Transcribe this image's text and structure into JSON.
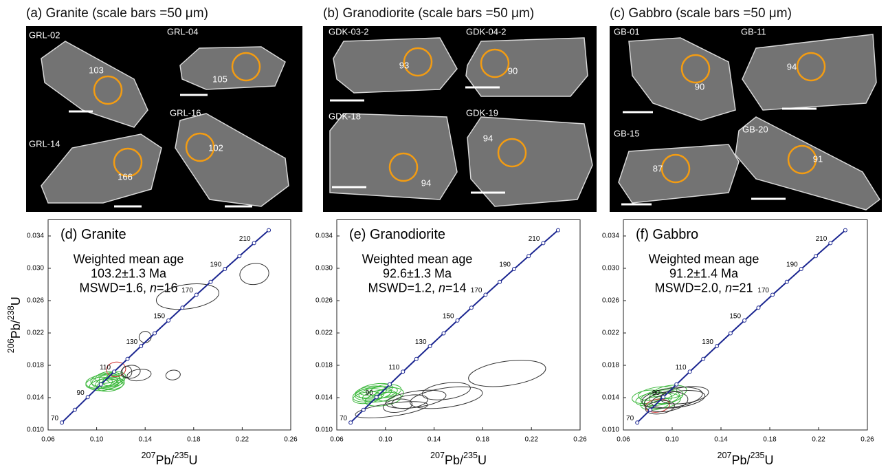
{
  "panels": [
    {
      "title": "(a) Granite (scale bars =50 μm)",
      "grains": [
        {
          "label": "GRL-02",
          "age": 103
        },
        {
          "label": "GRL-04",
          "age": 105
        },
        {
          "label": "GRL-14",
          "age": 166
        },
        {
          "label": "GRL-16",
          "age": 102
        }
      ]
    },
    {
      "title": "(b) Granodiorite (scale bars =50 μm)",
      "grains": [
        {
          "label": "GDK-03-2",
          "age": 93
        },
        {
          "label": "GDK-04-2",
          "age": 90
        },
        {
          "label": "GDK-18",
          "age": 94
        },
        {
          "label": "GDK-19",
          "age": 94
        }
      ]
    },
    {
      "title": "(c) Gabbro (scale bars =50 μm)",
      "grains": [
        {
          "label": "GB-01",
          "age": 90
        },
        {
          "label": "GB-11",
          "age": 94
        },
        {
          "label": "GB-15",
          "age": 87
        },
        {
          "label": "GB-20",
          "age": 91
        }
      ]
    }
  ],
  "chart_data": [
    {
      "type": "concordia",
      "title": "(d) Granite",
      "annotation": [
        "Weighted mean age",
        "103.2±1.3 Ma"
      ],
      "stats": [
        {
          "text": "MSWD=1.6, "
        },
        {
          "text": "n",
          "italic": true
        },
        {
          "text": "=16"
        }
      ],
      "y_label": [
        {
          "text": "206",
          "sup": true
        },
        {
          "text": "Pb/"
        },
        {
          "text": "238",
          "sup": true
        },
        {
          "text": "U"
        }
      ],
      "x_label": [
        {
          "text": "207",
          "sup": true
        },
        {
          "text": "Pb/"
        },
        {
          "text": "235",
          "sup": true
        },
        {
          "text": "U"
        }
      ],
      "xlim": [
        0.06,
        0.26
      ],
      "ylim": [
        0.01,
        0.036
      ],
      "xticks": [
        {
          "value": 0.06,
          "label": "0.06"
        },
        {
          "value": 0.1,
          "label": "0.10"
        },
        {
          "value": 0.14,
          "label": "0.14"
        },
        {
          "value": 0.18,
          "label": "0.18"
        },
        {
          "value": 0.22,
          "label": "0.22"
        },
        {
          "value": 0.26,
          "label": "0.26"
        }
      ],
      "yticks": [
        {
          "value": 0.01,
          "label": "0.010"
        },
        {
          "value": 0.014,
          "label": "0.014"
        },
        {
          "value": 0.018,
          "label": "0.018"
        },
        {
          "value": 0.022,
          "label": "0.022"
        },
        {
          "value": 0.026,
          "label": "0.026"
        },
        {
          "value": 0.03,
          "label": "0.030"
        },
        {
          "value": 0.034,
          "label": "0.034"
        }
      ],
      "concordia": {
        "color": "#1a2590",
        "x": [
          0.07137,
          0.08198,
          0.09268,
          0.1035,
          0.11442,
          0.12545,
          0.13659,
          0.14783,
          0.15919,
          0.17068,
          0.18226,
          0.19396,
          0.20577,
          0.21771,
          0.22974,
          0.24191
        ],
        "y": [
          0.010918,
          0.012487,
          0.014059,
          0.015634,
          0.01721,
          0.018789,
          0.020371,
          0.021955,
          0.023542,
          0.025131,
          0.026722,
          0.028316,
          0.029913,
          0.031511,
          0.033113,
          0.034717
        ],
        "age_labels": [
          70,
          null,
          90,
          null,
          110,
          null,
          130,
          null,
          150,
          null,
          170,
          null,
          190,
          null,
          210,
          null
        ]
      },
      "series": [
        {
          "color": "#3cb83c",
          "x": [
            0.108,
            0.11,
            0.112,
            0.106,
            0.114,
            0.104,
            0.109,
            0.111,
            0.107,
            0.113,
            0.102,
            0.116
          ],
          "y": [
            0.016,
            0.0158,
            0.0163,
            0.0156,
            0.0161,
            0.016,
            0.0165,
            0.0155,
            0.0162,
            0.0157,
            0.0158,
            0.0165
          ],
          "x_err": [
            0.012,
            0.011,
            0.01,
            0.012,
            0.009,
            0.013,
            0.01,
            0.011,
            0.012,
            0.01,
            0.011,
            0.008
          ],
          "y_err": [
            0.0008,
            0.0007,
            0.0008,
            0.0007,
            0.0007,
            0.0008,
            0.0007,
            0.0007,
            0.0008,
            0.0007,
            0.0007,
            0.0007
          ]
        },
        {
          "color": "#d03030",
          "x": [
            0.116
          ],
          "y": [
            0.0175
          ],
          "x_err": [
            0.008
          ],
          "y_err": [
            0.0009
          ]
        },
        {
          "color": "#333333",
          "x": [
            0.128,
            0.135,
            0.163,
            0.14,
            0.175,
            0.23,
            0.125
          ],
          "y": [
            0.0172,
            0.0168,
            0.0168,
            0.0215,
            0.0265,
            0.0293,
            0.0172
          ],
          "x_err": [
            0.008,
            0.01,
            0.006,
            0.005,
            0.026,
            0.012,
            0.004
          ],
          "y_err": [
            0.0008,
            0.0007,
            0.0006,
            0.0007,
            0.0015,
            0.0013,
            0.0007
          ]
        }
      ]
    },
    {
      "type": "concordia",
      "title": "(e) Granodiorite",
      "annotation": [
        "Weighted mean age",
        "92.6±1.3 Ma"
      ],
      "stats": [
        {
          "text": "MSWD=1.2, "
        },
        {
          "text": "n",
          "italic": true
        },
        {
          "text": "=14"
        }
      ],
      "x_label": [
        {
          "text": "207",
          "sup": true
        },
        {
          "text": "Pb/"
        },
        {
          "text": "235",
          "sup": true
        },
        {
          "text": "U"
        }
      ],
      "xlim": [
        0.06,
        0.26
      ],
      "ylim": [
        0.01,
        0.036
      ],
      "xticks": [
        {
          "value": 0.06,
          "label": "0.06"
        },
        {
          "value": 0.1,
          "label": "0.10"
        },
        {
          "value": 0.14,
          "label": "0.14"
        },
        {
          "value": 0.18,
          "label": "0.18"
        },
        {
          "value": 0.22,
          "label": "0.22"
        },
        {
          "value": 0.26,
          "label": "0.26"
        }
      ],
      "yticks": [
        {
          "value": 0.01,
          "label": "0.010"
        },
        {
          "value": 0.014,
          "label": "0.014"
        },
        {
          "value": 0.018,
          "label": "0.018"
        },
        {
          "value": 0.022,
          "label": "0.022"
        },
        {
          "value": 0.026,
          "label": "0.026"
        },
        {
          "value": 0.03,
          "label": "0.030"
        },
        {
          "value": 0.034,
          "label": "0.034"
        }
      ],
      "concordia": {
        "color": "#1a2590",
        "x": [
          0.07137,
          0.08198,
          0.09268,
          0.1035,
          0.11442,
          0.12545,
          0.13659,
          0.14783,
          0.15919,
          0.17068,
          0.18226,
          0.19396,
          0.20577,
          0.21771,
          0.22974,
          0.24191
        ],
        "y": [
          0.010918,
          0.012487,
          0.014059,
          0.015634,
          0.01721,
          0.018789,
          0.020371,
          0.021955,
          0.023542,
          0.025131,
          0.026722,
          0.028316,
          0.029913,
          0.031511,
          0.033113,
          0.034717
        ],
        "age_labels": [
          70,
          null,
          90,
          null,
          110,
          null,
          130,
          null,
          150,
          null,
          170,
          null,
          190,
          null,
          210,
          null
        ]
      },
      "series": [
        {
          "color": "#3cb83c",
          "x": [
            0.09,
            0.095,
            0.1,
            0.085,
            0.092,
            0.098,
            0.088,
            0.103,
            0.094,
            0.086
          ],
          "y": [
            0.0145,
            0.0142,
            0.0148,
            0.014,
            0.015,
            0.0138,
            0.0147,
            0.0144,
            0.0146,
            0.0143
          ],
          "x_err": [
            0.015,
            0.014,
            0.013,
            0.012,
            0.014,
            0.015,
            0.013,
            0.012,
            0.016,
            0.013
          ],
          "y_err": [
            0.0008,
            0.0007,
            0.0008,
            0.0007,
            0.0007,
            0.0008,
            0.0007,
            0.0008,
            0.0007,
            0.0008
          ]
        },
        {
          "color": "#333333",
          "x": [
            0.2,
            0.15,
            0.125,
            0.12,
            0.11,
            0.105,
            0.15
          ],
          "y": [
            0.017,
            0.014,
            0.0138,
            0.0135,
            0.013,
            0.0125,
            0.0148
          ],
          "x_err": [
            0.032,
            0.03,
            0.025,
            0.015,
            0.012,
            0.03,
            0.02
          ],
          "y_err": [
            0.0015,
            0.0012,
            0.001,
            0.0008,
            0.0008,
            0.0008,
            0.001
          ]
        }
      ]
    },
    {
      "type": "concordia",
      "title": "(f) Gabbro",
      "annotation": [
        "Weighted mean age",
        "91.2±1.4 Ma"
      ],
      "stats": [
        {
          "text": "MSWD=2.0, "
        },
        {
          "text": "n",
          "italic": true
        },
        {
          "text": "=21"
        }
      ],
      "x_label": [
        {
          "text": "207",
          "sup": true
        },
        {
          "text": "Pb/"
        },
        {
          "text": "235",
          "sup": true
        },
        {
          "text": "U"
        }
      ],
      "xlim": [
        0.06,
        0.26
      ],
      "ylim": [
        0.01,
        0.036
      ],
      "xticks": [
        {
          "value": 0.06,
          "label": "0.06"
        },
        {
          "value": 0.1,
          "label": "0.10"
        },
        {
          "value": 0.14,
          "label": "0.14"
        },
        {
          "value": 0.18,
          "label": "0.18"
        },
        {
          "value": 0.22,
          "label": "0.22"
        },
        {
          "value": 0.26,
          "label": "0.26"
        }
      ],
      "yticks": [
        {
          "value": 0.01,
          "label": "0.010"
        },
        {
          "value": 0.014,
          "label": "0.014"
        },
        {
          "value": 0.018,
          "label": "0.018"
        },
        {
          "value": 0.022,
          "label": "0.022"
        },
        {
          "value": 0.026,
          "label": "0.026"
        },
        {
          "value": 0.03,
          "label": "0.030"
        },
        {
          "value": 0.034,
          "label": "0.034"
        }
      ],
      "concordia": {
        "color": "#1a2590",
        "x": [
          0.07137,
          0.08198,
          0.09268,
          0.1035,
          0.11442,
          0.12545,
          0.13659,
          0.14783,
          0.15919,
          0.17068,
          0.18226,
          0.19396,
          0.20577,
          0.21771,
          0.22974,
          0.24191
        ],
        "y": [
          0.010918,
          0.012487,
          0.014059,
          0.015634,
          0.01721,
          0.018789,
          0.020371,
          0.021955,
          0.023542,
          0.025131,
          0.026722,
          0.028316,
          0.029913,
          0.031511,
          0.033113,
          0.034717
        ],
        "age_labels": [
          70,
          null,
          90,
          null,
          110,
          null,
          130,
          null,
          150,
          null,
          170,
          null,
          190,
          null,
          210,
          null
        ]
      },
      "series": [
        {
          "color": "#3cb83c",
          "x": [
            0.09,
            0.085,
            0.095,
            0.088,
            0.092,
            0.08,
            0.098,
            0.086
          ],
          "y": [
            0.014,
            0.0138,
            0.0142,
            0.0145,
            0.0136,
            0.0141,
            0.0147,
            0.0133
          ],
          "x_err": [
            0.016,
            0.015,
            0.014,
            0.016,
            0.015,
            0.013,
            0.014,
            0.012
          ],
          "y_err": [
            0.0009,
            0.0008,
            0.0009,
            0.0008,
            0.0009,
            0.0008,
            0.0008,
            0.0008
          ]
        },
        {
          "color": "#d03030",
          "x": [
            0.088
          ],
          "y": [
            0.013
          ],
          "x_err": [
            0.01
          ],
          "y_err": [
            0.0008
          ]
        },
        {
          "color": "#333333",
          "x": [
            0.1,
            0.11,
            0.095,
            0.105,
            0.09
          ],
          "y": [
            0.014,
            0.0143,
            0.0135,
            0.0138,
            0.0128
          ],
          "x_err": [
            0.025,
            0.02,
            0.018,
            0.022,
            0.012
          ],
          "y_err": [
            0.0012,
            0.001,
            0.0012,
            0.001,
            0.0008
          ]
        }
      ]
    }
  ]
}
